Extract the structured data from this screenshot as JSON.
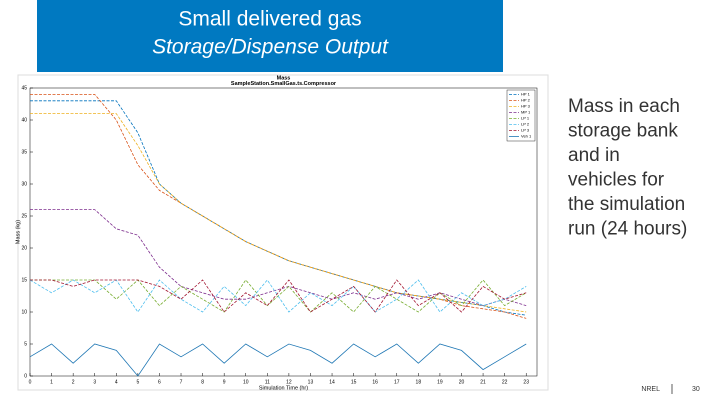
{
  "slide": {
    "title_line1": "Small delivered gas",
    "title_line2": "Storage/Dispense Output",
    "body_lines": [
      "Mass in each",
      "storage bank",
      "and in",
      "vehicles for",
      "the simulation",
      "run (24 hours)"
    ],
    "footer_org": "NREL",
    "footer_page": "30"
  },
  "chart_data": {
    "type": "line",
    "title": "Mass",
    "subtitle": "SampleStation.SmallGas.ts.Compressor",
    "x_label": "Simulation Time (hr)",
    "y_label": "Mass (kg)",
    "x": [
      0,
      1,
      2,
      3,
      4,
      5,
      6,
      7,
      8,
      9,
      10,
      11,
      12,
      13,
      14,
      15,
      16,
      17,
      18,
      19,
      20,
      21,
      22,
      23
    ],
    "xlim": [
      0,
      23.5
    ],
    "xticks": [
      0,
      1,
      2,
      3,
      4,
      5,
      6,
      7,
      8,
      9,
      10,
      11,
      12,
      13,
      14,
      15,
      16,
      17,
      18,
      19,
      20,
      21,
      22,
      23
    ],
    "ylim": [
      0,
      45
    ],
    "yticks": [
      0,
      5,
      10,
      15,
      20,
      25,
      30,
      35,
      40,
      45
    ],
    "grid": false,
    "legend": "top-right",
    "series": [
      {
        "name": "HP 1",
        "color": "#0072bd",
        "values": [
          43,
          43,
          43,
          43,
          43,
          38,
          30,
          27,
          25,
          23,
          21,
          19.5,
          18,
          17,
          16,
          15,
          14,
          13,
          12.5,
          12,
          11.5,
          11,
          10,
          9.5
        ]
      },
      {
        "name": "HP 2",
        "color": "#d95319",
        "values": [
          44,
          44,
          44,
          44,
          40,
          33,
          29,
          27,
          25,
          23,
          21,
          19.5,
          18,
          17,
          16,
          15,
          14,
          13,
          12.5,
          12,
          11,
          10.5,
          10,
          9
        ]
      },
      {
        "name": "HP 3",
        "color": "#edb120",
        "values": [
          41,
          41,
          41,
          41,
          41,
          36,
          30,
          27,
          25,
          23,
          21,
          19.5,
          18,
          17,
          16,
          15,
          14,
          13,
          12.5,
          12,
          11.5,
          11,
          10.5,
          10
        ]
      },
      {
        "name": "MP 1",
        "color": "#7e2f8e",
        "values": [
          26,
          26,
          26,
          26,
          23,
          22,
          17,
          14,
          13,
          12,
          12,
          13,
          14,
          13,
          12,
          13,
          12,
          13,
          12,
          13,
          12,
          11,
          12,
          11
        ]
      },
      {
        "name": "LP 1",
        "color": "#77ac30",
        "values": [
          15,
          15,
          15,
          15,
          12,
          15,
          11,
          14,
          12,
          10,
          15,
          11,
          14,
          10,
          13,
          10,
          14,
          12,
          10,
          13,
          11,
          15,
          11,
          13
        ]
      },
      {
        "name": "LP 2",
        "color": "#4dbeee",
        "values": [
          15,
          13,
          15,
          13,
          15,
          10,
          15,
          12,
          10,
          14,
          11,
          15,
          10,
          13,
          11,
          14,
          10,
          12,
          15,
          10,
          13,
          11,
          12,
          14
        ]
      },
      {
        "name": "LP 3",
        "color": "#a2142f",
        "values": [
          15,
          15,
          14,
          15,
          15,
          15,
          14,
          12,
          15,
          10,
          13,
          11,
          15,
          10,
          12,
          14,
          10,
          15,
          11,
          13,
          10,
          14,
          12,
          13
        ]
      },
      {
        "name": "Veh 1",
        "color": "#1f77b4",
        "values": [
          3,
          5,
          2,
          5,
          4,
          0,
          5,
          3,
          5,
          2,
          5,
          3,
          5,
          4,
          2,
          5,
          3,
          5,
          2,
          5,
          4,
          1,
          3,
          5
        ]
      }
    ]
  }
}
